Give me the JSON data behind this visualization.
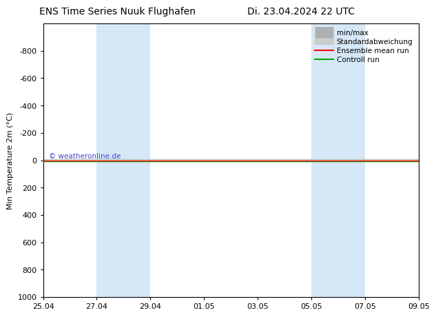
{
  "title_left": "ENS Time Series Nuuk Flughafen",
  "title_right": "Di. 23.04.2024 22 UTC",
  "ylabel": "Min Temperature 2m (°C)",
  "ylim": [
    -1000,
    1000
  ],
  "yticks": [
    -800,
    -600,
    -400,
    -200,
    0,
    200,
    400,
    600,
    800,
    1000
  ],
  "xtick_labels": [
    "25.04",
    "27.04",
    "29.04",
    "01.05",
    "03.05",
    "05.05",
    "07.05",
    "09.05"
  ],
  "xtick_positions": [
    0,
    2,
    4,
    6,
    8,
    10,
    12,
    14
  ],
  "xlim": [
    0,
    14
  ],
  "shaded_bands": [
    {
      "x_start": 2,
      "x_end": 4
    },
    {
      "x_start": 10,
      "x_end": 12
    }
  ],
  "shaded_color": "#d6e8f7",
  "control_run_color": "#00aa00",
  "ensemble_mean_color": "#ff0000",
  "minmax_color": "#c0c0c0",
  "stddev_color": "#d8d8d8",
  "background_color": "#ffffff",
  "plot_area_color": "#ffffff",
  "watermark_text": "© weatheronline.de",
  "watermark_color": "#4444cc",
  "legend_labels": [
    "min/max",
    "Standardabweichung",
    "Ensemble mean run",
    "Controll run"
  ],
  "legend_colors_line": [
    "#b0b0b0",
    "#cccccc",
    "#ff0000",
    "#00aa00"
  ],
  "title_fontsize": 10,
  "axis_fontsize": 8,
  "tick_fontsize": 8,
  "legend_fontsize": 7.5
}
